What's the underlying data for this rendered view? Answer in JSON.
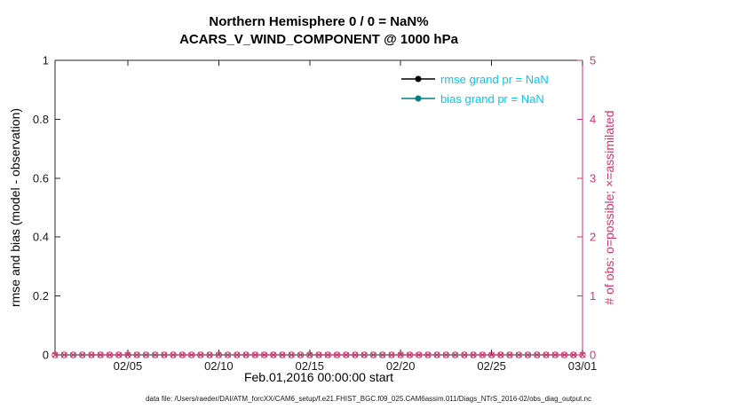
{
  "chart_data": {
    "type": "line",
    "title": "Northern Hemisphere 0 / 0 = NaN%",
    "subtitle": "ACARS_V_WIND_COMPONENT @ 1000 hPa",
    "xlabel": "Feb.01,2016 00:00:00 start",
    "ylabel_left": "rmse and bias (model - observation)",
    "ylabel_right": "# of obs: o=possible; ×=assimilated",
    "footer": "data file: /Users/raeder/DAI/ATM_forcXX/CAM6_setup/f.e21.FHIST_BGC.f09_025.CAM6assim.011/Diags_NTrS_2016-02/obs_diag_output.nc",
    "grid": false,
    "x_range_days": [
      0,
      29
    ],
    "x_ticks": [
      {
        "day": 4,
        "label": "02/05"
      },
      {
        "day": 9,
        "label": "02/10"
      },
      {
        "day": 14,
        "label": "02/15"
      },
      {
        "day": 19,
        "label": "02/20"
      },
      {
        "day": 24,
        "label": "02/25"
      },
      {
        "day": 29,
        "label": "03/01"
      }
    ],
    "ylim_left": [
      0,
      1
    ],
    "yticks_left": [
      {
        "v": 0,
        "label": "0"
      },
      {
        "v": 0.2,
        "label": "0.2"
      },
      {
        "v": 0.4,
        "label": "0.4"
      },
      {
        "v": 0.6,
        "label": "0.6"
      },
      {
        "v": 0.8,
        "label": "0.8"
      },
      {
        "v": 1,
        "label": "1"
      }
    ],
    "ylim_right": [
      0,
      5
    ],
    "yticks_right": [
      {
        "v": 0,
        "label": "0"
      },
      {
        "v": 1,
        "label": "1"
      },
      {
        "v": 2,
        "label": "2"
      },
      {
        "v": 3,
        "label": "3"
      },
      {
        "v": 4,
        "label": "4"
      },
      {
        "v": 5,
        "label": "5"
      }
    ],
    "legend": {
      "position": "top-right-inside",
      "text_color": "#00CCEE",
      "entries": [
        {
          "label": "rmse grand pr = NaN",
          "color": "#000000"
        },
        {
          "label": "bias grand pr = NaN",
          "color": "#008080"
        }
      ]
    },
    "series": [
      {
        "name": "rmse",
        "axis": "left",
        "color": "#000000",
        "marker": "filled-circle",
        "values": []
      },
      {
        "name": "bias",
        "axis": "left",
        "color": "#008080",
        "marker": "filled-circle",
        "values": []
      },
      {
        "name": "obs-possible",
        "axis": "right",
        "color": "#D6336C",
        "marker": "o",
        "n_times": 59,
        "value_at_every_time": 0
      },
      {
        "name": "obs-assimilated",
        "axis": "right",
        "color": "#D6336C",
        "marker": "x",
        "n_times": 59,
        "value_at_every_time": 0
      }
    ],
    "colors": {
      "right_axis": "#D6336C",
      "axis": "#262626",
      "background": "#FFFFFF"
    }
  }
}
